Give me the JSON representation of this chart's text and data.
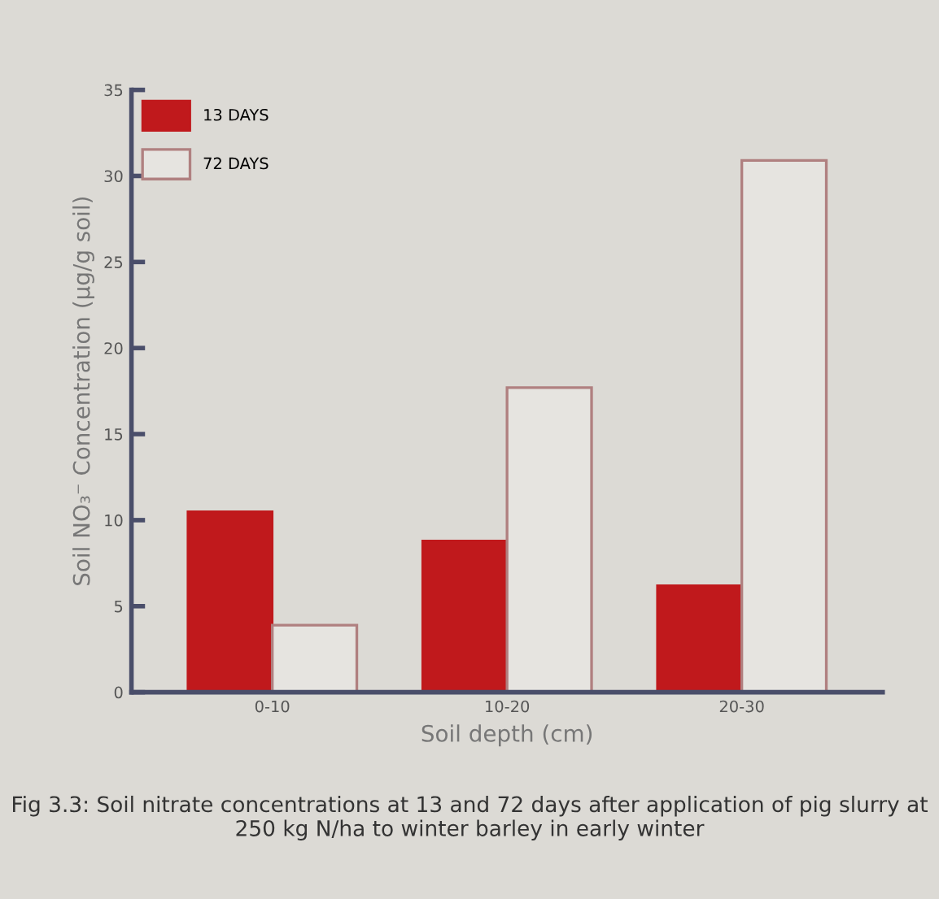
{
  "chart_data": {
    "type": "bar",
    "xlabel": "Soil depth (cm)",
    "ylabel": "Soil NO₃⁻ Concentration (µg/g soil)",
    "categories": [
      "0-10",
      "10-20",
      "20-30"
    ],
    "series": [
      {
        "name": "13 DAYS",
        "color": "#c0191c",
        "values": [
          10.5,
          8.8,
          6.2
        ]
      },
      {
        "name": "72 DAYS",
        "color": "#b08080",
        "values": [
          3.9,
          17.7,
          30.9
        ]
      }
    ],
    "ylim": [
      0,
      35
    ],
    "yticks": [
      0,
      5,
      10,
      15,
      20,
      25,
      30,
      35
    ],
    "legend": "top left",
    "annotations": [
      "Fig 3.3: Soil nitrate concentrations at 13 and 72 days after application of pig slurry at 250 kg N/ha to winter barley in early winter"
    ]
  }
}
